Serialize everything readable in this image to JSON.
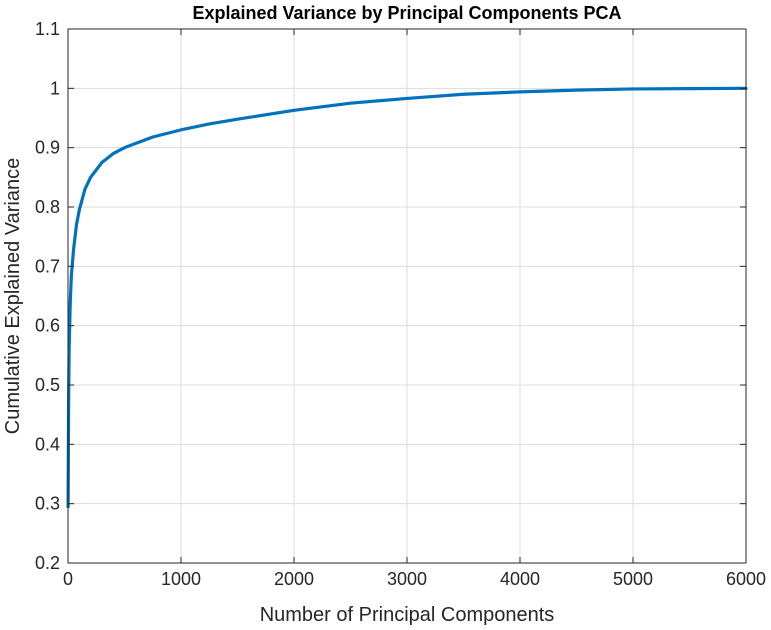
{
  "chart_data": {
    "type": "line",
    "title": "Explained Variance by Principal Components PCA",
    "xlabel": "Number of Principal Components",
    "ylabel": "Cumulative Explained Variance",
    "xlim": [
      0,
      6000
    ],
    "ylim": [
      0.2,
      1.1
    ],
    "xticks": [
      "0",
      "1000",
      "2000",
      "3000",
      "4000",
      "5000",
      "6000"
    ],
    "yticks": [
      "0.2",
      "0.3",
      "0.4",
      "0.5",
      "0.6",
      "0.7",
      "0.8",
      "0.9",
      "1",
      "1.1"
    ],
    "grid": true,
    "line_color": "#0072BD",
    "series": [
      {
        "x": [
          1,
          5,
          10,
          20,
          30,
          50,
          75,
          100,
          150,
          200,
          300,
          400,
          500,
          750,
          1000,
          1250,
          1500,
          2000,
          2500,
          3000,
          3500,
          4000,
          4500,
          5000,
          5500,
          6000
        ],
        "y": [
          0.295,
          0.46,
          0.56,
          0.64,
          0.685,
          0.73,
          0.77,
          0.795,
          0.83,
          0.85,
          0.875,
          0.89,
          0.9,
          0.918,
          0.93,
          0.94,
          0.948,
          0.963,
          0.975,
          0.983,
          0.99,
          0.994,
          0.997,
          0.999,
          0.9995,
          1.0
        ]
      }
    ]
  }
}
